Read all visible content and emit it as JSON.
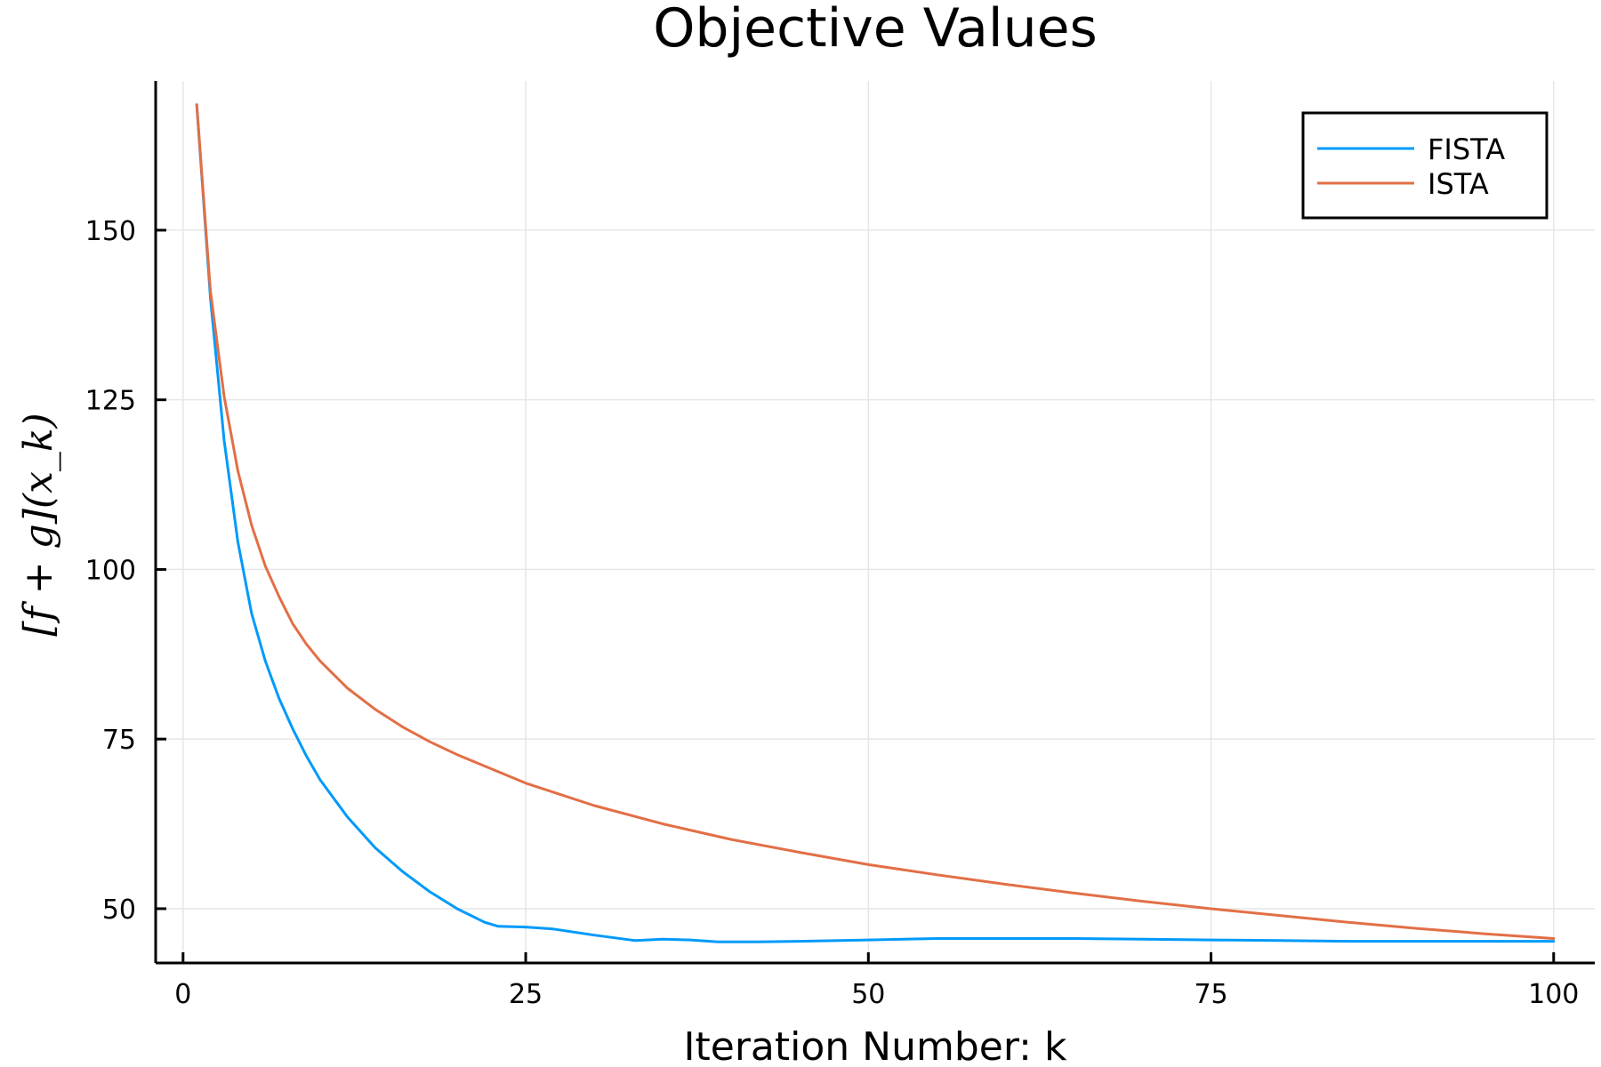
{
  "chart_data": {
    "type": "line",
    "title": "Objective Values",
    "xlabel": "Iteration Number: k",
    "ylabel": "[f + g](x_k)",
    "xlim": [
      -2,
      103
    ],
    "ylim": [
      42,
      172
    ],
    "xticks": [
      0,
      25,
      50,
      75,
      100
    ],
    "yticks": [
      50,
      75,
      100,
      125,
      150
    ],
    "grid": true,
    "legend_position": "top-right",
    "series": [
      {
        "name": "FISTA",
        "color": "#009AFA",
        "points": [
          [
            1,
            168.5
          ],
          [
            2,
            140
          ],
          [
            3,
            119
          ],
          [
            4,
            104
          ],
          [
            5,
            93.5
          ],
          [
            6,
            86.5
          ],
          [
            7,
            81
          ],
          [
            8,
            76.5
          ],
          [
            9,
            72.5
          ],
          [
            10,
            69
          ],
          [
            12,
            63.5
          ],
          [
            14,
            59
          ],
          [
            16,
            55.5
          ],
          [
            18,
            52.5
          ],
          [
            20,
            50
          ],
          [
            22,
            48
          ],
          [
            23,
            47.4
          ],
          [
            25,
            47.3
          ],
          [
            27,
            47
          ],
          [
            30,
            46.1
          ],
          [
            33,
            45.3
          ],
          [
            35,
            45.5
          ],
          [
            37,
            45.4
          ],
          [
            39,
            45.1
          ],
          [
            42,
            45.1
          ],
          [
            45,
            45.2
          ],
          [
            50,
            45.4
          ],
          [
            55,
            45.6
          ],
          [
            60,
            45.6
          ],
          [
            65,
            45.6
          ],
          [
            70,
            45.5
          ],
          [
            75,
            45.4
          ],
          [
            80,
            45.3
          ],
          [
            85,
            45.2
          ],
          [
            90,
            45.2
          ],
          [
            95,
            45.2
          ],
          [
            100,
            45.2
          ]
        ]
      },
      {
        "name": "ISTA",
        "color": "#E26F46",
        "points": [
          [
            1,
            168.5
          ],
          [
            2,
            141
          ],
          [
            3,
            125.5
          ],
          [
            4,
            114.5
          ],
          [
            5,
            106.5
          ],
          [
            6,
            100.5
          ],
          [
            7,
            96
          ],
          [
            8,
            92
          ],
          [
            9,
            89
          ],
          [
            10,
            86.5
          ],
          [
            12,
            82.5
          ],
          [
            14,
            79.4
          ],
          [
            16,
            76.8
          ],
          [
            18,
            74.6
          ],
          [
            20,
            72.7
          ],
          [
            25,
            68.5
          ],
          [
            30,
            65.2
          ],
          [
            35,
            62.5
          ],
          [
            40,
            60.2
          ],
          [
            45,
            58.3
          ],
          [
            50,
            56.5
          ],
          [
            55,
            55
          ],
          [
            60,
            53.6
          ],
          [
            65,
            52.3
          ],
          [
            70,
            51.1
          ],
          [
            75,
            50
          ],
          [
            80,
            49
          ],
          [
            85,
            48
          ],
          [
            90,
            47.1
          ],
          [
            95,
            46.3
          ],
          [
            100,
            45.6
          ]
        ]
      }
    ]
  }
}
